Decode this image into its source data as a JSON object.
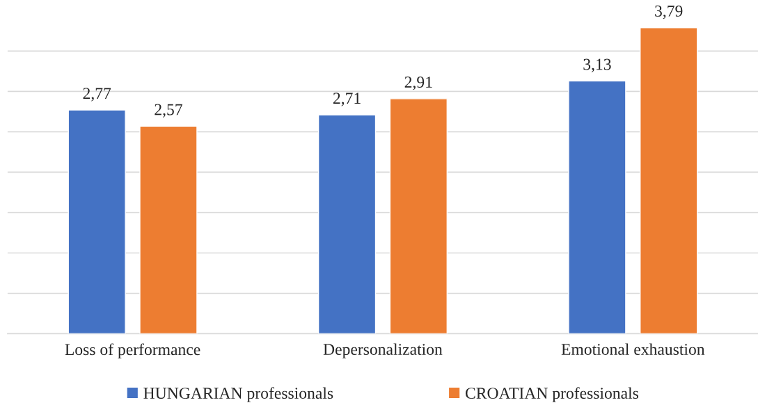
{
  "chart_data": {
    "type": "bar",
    "categories": [
      "Loss of performance",
      "Depersonalization",
      "Emotional exhaustion"
    ],
    "series": [
      {
        "name": "HUNGARIAN professionals",
        "color": "#4472c4",
        "values": [
          2.77,
          2.71,
          3.13
        ],
        "value_labels": [
          "2,77",
          "2,71",
          "3,13"
        ]
      },
      {
        "name": "CROATIAN professionals",
        "color": "#ed7d31",
        "values": [
          2.57,
          2.91,
          3.79
        ],
        "value_labels": [
          "2,57",
          "2,91",
          "3,79"
        ]
      }
    ],
    "tick_labels": "x",
    "grid": "y",
    "legend": "bottom"
  }
}
